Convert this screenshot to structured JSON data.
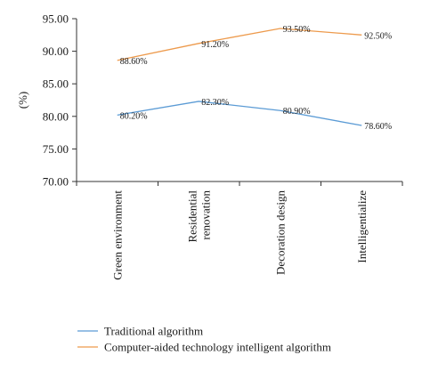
{
  "chart_data": {
    "type": "line",
    "title": "",
    "xlabel": "",
    "ylabel": "(%)",
    "ylim": [
      70,
      95
    ],
    "yticks": [
      "70.00",
      "75.00",
      "80.00",
      "85.00",
      "90.00",
      "95.00"
    ],
    "categories": [
      [
        "Green environment"
      ],
      [
        "Residential",
        "renovation"
      ],
      [
        "Decoration design"
      ],
      [
        "Intelligentialize"
      ]
    ],
    "series": [
      {
        "name": "Traditional algorithm",
        "color": "#5b9bd5",
        "values": [
          80.2,
          82.3,
          80.9,
          78.6
        ],
        "labels": [
          "80.20%",
          "82.30%",
          "80.90%",
          "78.60%"
        ]
      },
      {
        "name": "Computer-aided technology intelligent algorithm",
        "color": "#ed9a4c",
        "values": [
          88.6,
          91.2,
          93.5,
          92.5
        ],
        "labels": [
          "88.60%",
          "91.20%",
          "93.50%",
          "92.50%"
        ]
      }
    ],
    "grid": false,
    "legend_position": "bottom-left"
  }
}
